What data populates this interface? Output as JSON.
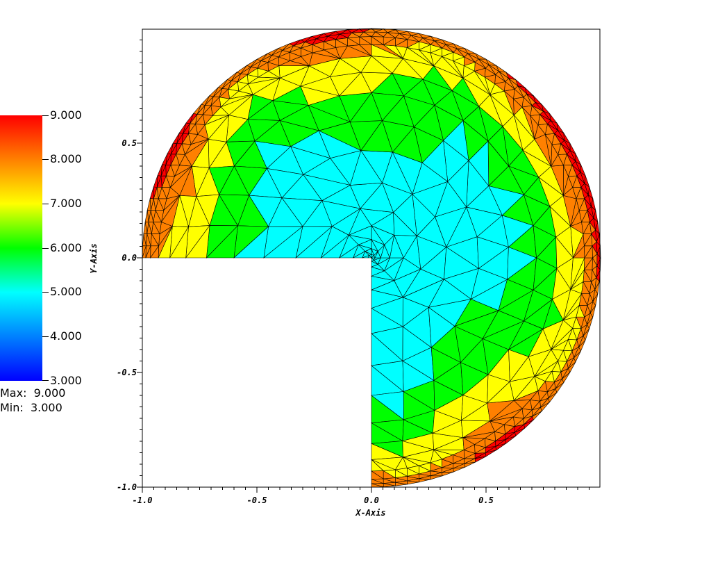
{
  "legend": {
    "labels": [
      "9.000",
      "8.000",
      "7.000",
      "6.000",
      "5.000",
      "4.000",
      "3.000"
    ],
    "max_label": "Max:",
    "max_value": "9.000",
    "min_label": "Min:",
    "min_value": "3.000",
    "colors": [
      "#ff0000",
      "#ff8000",
      "#ffff00",
      "#00ff00",
      "#00ffff",
      "#0080ff",
      "#0000ff"
    ]
  },
  "chart_data": {
    "type": "heatmap",
    "title": "",
    "xlabel": "X-Axis",
    "ylabel": "Y-Axis",
    "xlim": [
      -1.0,
      1.0
    ],
    "ylim": [
      -1.0,
      1.0
    ],
    "x_tick_labels": [
      "-1.0",
      "-0.5",
      "0.0",
      "0.5"
    ],
    "x_ticks": [
      -1.0,
      -0.5,
      0.0,
      0.5
    ],
    "y_tick_labels": [
      "-1.0",
      "-0.5",
      "0.0",
      "0.5"
    ],
    "y_ticks": [
      -1.0,
      -0.5,
      0.0,
      0.5
    ],
    "value_range": [
      3.0,
      9.0
    ],
    "domain": "unit disk with quadrant x<0, y<0 removed (triangular mesh)",
    "grid": false
  }
}
